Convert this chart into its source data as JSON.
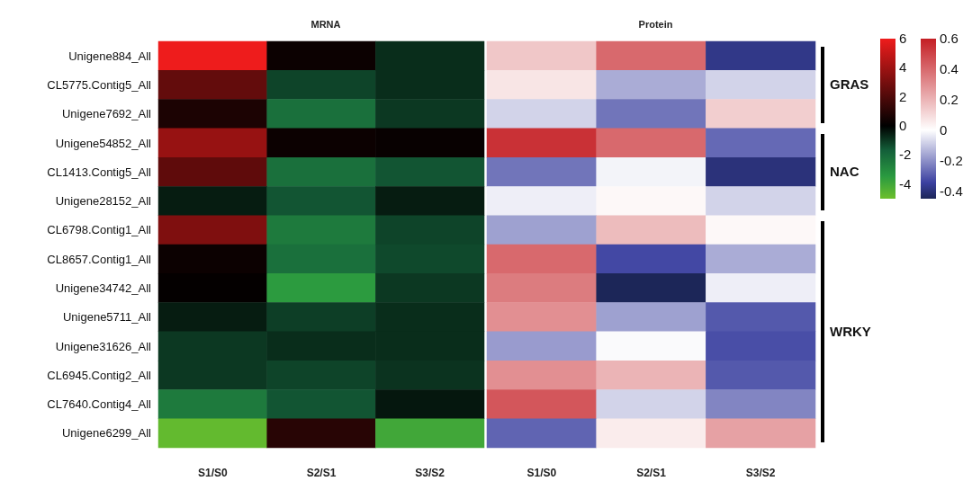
{
  "chart_data": [
    {
      "type": "heatmap",
      "title": "MRNA",
      "categories": [
        "S1/S0",
        "S2/S1",
        "S3/S2"
      ],
      "y_categories": [
        "Unigene884_All",
        "CL5775.Contig5_All",
        "Unigene7692_All",
        "Unigene54852_All",
        "CL1413.Contig5_All",
        "Unigene28152_All",
        "CL6798.Contig1_All",
        "CL8657.Contig1_All",
        "Unigene34742_All",
        "Unigene5711_All",
        "Unigene31626_All",
        "CL6945.Contig2_All",
        "CL7640.Contig4_All",
        "Unigene6299_All"
      ],
      "cells": [
        [
          6,
          0.3,
          -0.8
        ],
        [
          2.5,
          -1.2,
          -0.8
        ],
        [
          0.7,
          -2.2,
          -1
        ],
        [
          3.8,
          0.3,
          0.2
        ],
        [
          2.4,
          -2.2,
          -1.5
        ],
        [
          -0.5,
          -1.5,
          -0.5
        ],
        [
          3.2,
          -2.5,
          -1.2
        ],
        [
          0.3,
          -2.2,
          -1.3
        ],
        [
          0.1,
          -3.5,
          -1
        ],
        [
          -0.5,
          -1.1,
          -0.8
        ],
        [
          -1,
          -0.8,
          -0.8
        ],
        [
          -1,
          -1.2,
          -0.9
        ],
        [
          -2.5,
          -1.5,
          -0.4
        ],
        [
          -4.8,
          1,
          -4
        ]
      ],
      "clim": [
        -5,
        6
      ],
      "cticks": [
        6,
        4,
        2,
        0,
        -2,
        -4
      ]
    },
    {
      "type": "heatmap",
      "title": "Protein",
      "categories": [
        "S1/S0",
        "S2/S1",
        "S3/S2"
      ],
      "y_categories": [
        null,
        null,
        null,
        null,
        null,
        null,
        null,
        null,
        null,
        null,
        null,
        null,
        null,
        null
      ],
      "cells": [
        [
          0.15,
          0.4,
          -0.38
        ],
        [
          0.07,
          -0.15,
          -0.08
        ],
        [
          -0.08,
          -0.25,
          0.13
        ],
        [
          0.55,
          0.4,
          -0.27
        ],
        [
          -0.25,
          -0.02,
          -0.4
        ],
        [
          -0.03,
          0.02,
          -0.08
        ],
        [
          -0.17,
          0.18,
          0.02
        ],
        [
          0.4,
          -0.33,
          -0.15
        ],
        [
          0.35,
          -0.45,
          -0.03
        ],
        [
          0.3,
          -0.17,
          -0.3
        ],
        [
          -0.18,
          -0.01,
          -0.32
        ],
        [
          0.3,
          0.2,
          -0.3
        ],
        [
          0.45,
          -0.08,
          -0.22
        ],
        [
          -0.28,
          0.05,
          0.25
        ]
      ],
      "clim": [
        -0.45,
        0.6
      ],
      "cticks": [
        0.6,
        0.4,
        0.2,
        0,
        -0.2,
        -0.4
      ],
      "tick_labels": "x",
      "annotations": [
        "GRAS",
        "NAC",
        "WRKY"
      ]
    }
  ]
}
